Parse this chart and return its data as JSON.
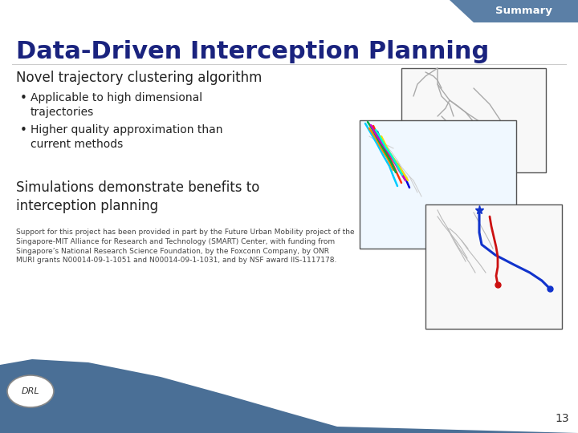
{
  "background_color": "#ffffff",
  "summary_tab_color": "#5b7fa6",
  "summary_text": "Summary",
  "summary_text_color": "#ffffff",
  "title": "Data-Driven Interception Planning",
  "title_color": "#1a237e",
  "section1_heading": "Novel trajectory clustering algorithm",
  "bullet1": "Applicable to high dimensional\ntrajectories",
  "bullet2": "Higher quality approximation than\ncurrent methods",
  "section2_heading": "Simulations demonstrate benefits to\ninterception planning",
  "footer_text": "Support for this project has been provided in part by the Future Urban Mobility project of the\nSingapore-MIT Alliance for Research and Technology (SMART) Center, with funding from\nSingapore’s National Research Science Foundation, by the Foxconn Company, by ONR\nMURI grants N00014-09-1-1051 and N00014-09-1-1031, and by NSF award IIS-1117178.",
  "page_number": "13",
  "heading_color": "#222222",
  "bullet_color": "#222222",
  "footer_color": "#444444",
  "bottom_bar_color": "#4a6f96",
  "drl_oval_fill": "#ffffff",
  "drl_oval_stroke": "#888888",
  "drl_text_color": "#333333"
}
